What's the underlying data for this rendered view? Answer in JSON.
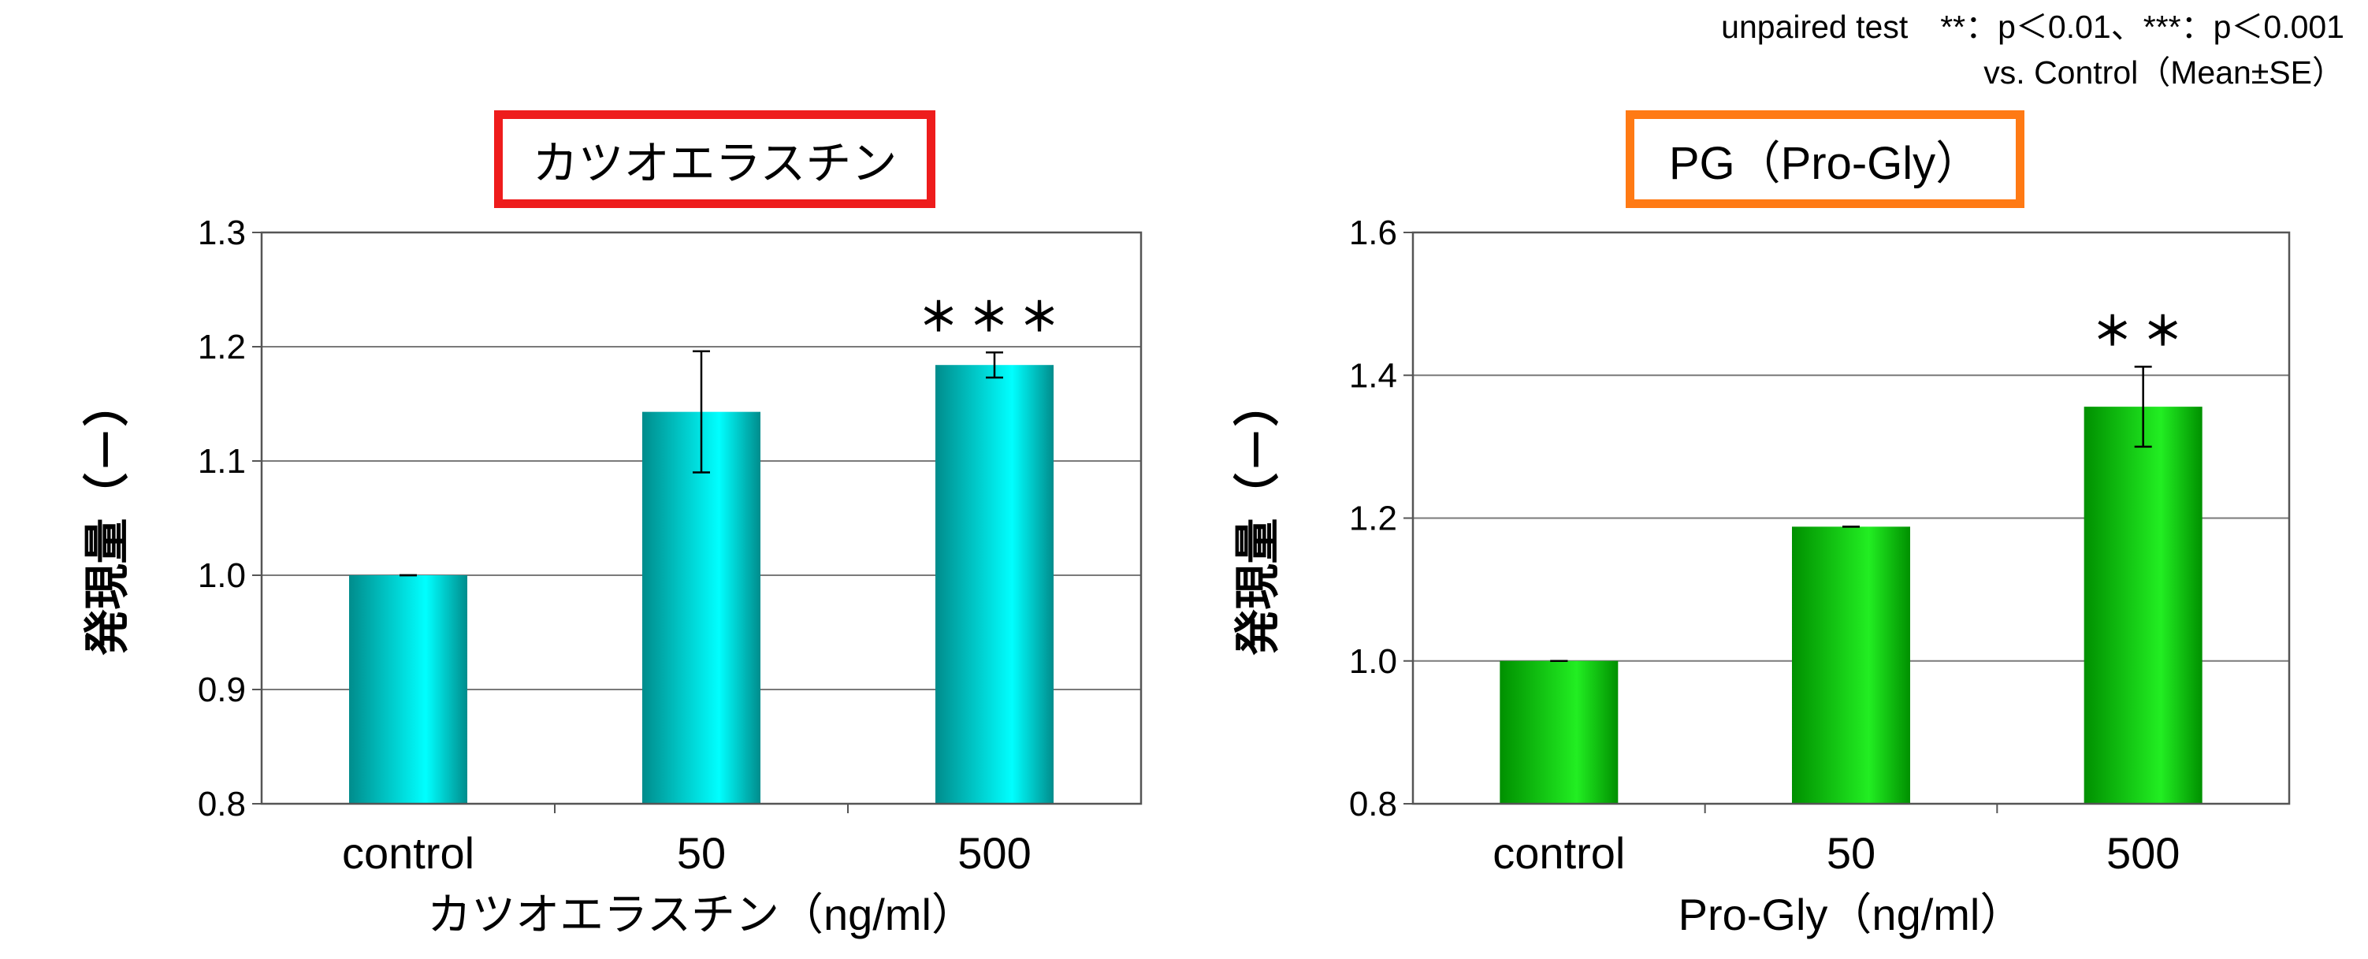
{
  "note": {
    "line1": "unpaired test　**：p＜0.01、***：p＜0.001",
    "line2": "vs. Control（Mean±SE）"
  },
  "chart_data": [
    {
      "type": "bar",
      "title": "カツオエラスチン",
      "title_border_color": "#ee1c1c",
      "xlabel": "カツオエラスチン（ng/ml）",
      "ylabel": "発現量（－）",
      "categories": [
        "control",
        "50",
        "500"
      ],
      "values": [
        1.0,
        1.143,
        1.184
      ],
      "errors": [
        0.0,
        0.053,
        0.011
      ],
      "significance": [
        "",
        "",
        "＊＊＊"
      ],
      "ylim": [
        0.8,
        1.3
      ],
      "yticks": [
        "0.8",
        "0.9",
        "1.0",
        "1.1",
        "1.2",
        "1.3"
      ],
      "grid": true,
      "bar_gradient": [
        "#008c8c",
        "#00ffff"
      ]
    },
    {
      "type": "bar",
      "title": "PG（Pro-Gly）",
      "title_border_color": "#ff7a14",
      "xlabel": "Pro-Gly（ng/ml）",
      "ylabel": "発現量（－）",
      "categories": [
        "control",
        "50",
        "500"
      ],
      "values": [
        1.0,
        1.188,
        1.356
      ],
      "errors": [
        0.0,
        0.0,
        0.056
      ],
      "significance": [
        "",
        "",
        "＊＊"
      ],
      "ylim": [
        0.8,
        1.6
      ],
      "yticks": [
        "0.8",
        "1.0",
        "1.2",
        "1.4",
        "1.6"
      ],
      "grid": true,
      "bar_gradient": [
        "#009000",
        "#22ee22"
      ]
    }
  ]
}
